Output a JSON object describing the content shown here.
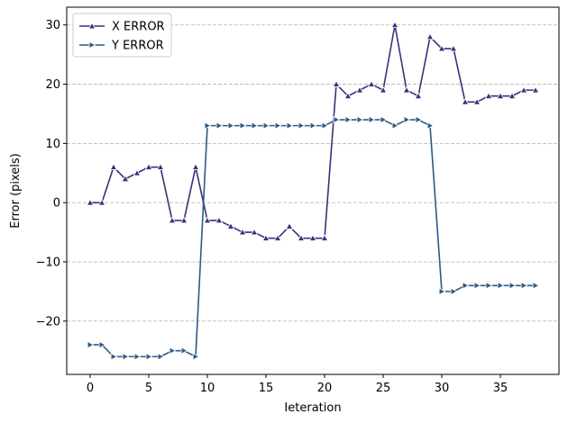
{
  "chart_data": {
    "type": "line",
    "title": "",
    "xlabel": "Ieteration",
    "ylabel": "Error (pixels)",
    "xlim": [
      -2,
      40
    ],
    "ylim": [
      -29,
      33
    ],
    "xticks": [
      0,
      5,
      10,
      15,
      20,
      25,
      30,
      35
    ],
    "yticks": [
      -20,
      -10,
      0,
      10,
      20,
      30
    ],
    "ytick_labels": [
      "−20",
      "−10",
      "0",
      "10",
      "20",
      "30"
    ],
    "grid": "horizontal dashed",
    "legend_position": "top-left",
    "x": [
      0,
      1,
      2,
      3,
      4,
      5,
      6,
      7,
      8,
      9,
      10,
      11,
      12,
      13,
      14,
      15,
      16,
      17,
      18,
      19,
      20,
      21,
      22,
      23,
      24,
      25,
      26,
      27,
      28,
      29,
      30,
      31,
      32,
      33,
      34,
      35,
      36,
      37,
      38
    ],
    "series": [
      {
        "name": "X ERROR",
        "color": "#3d2f7a",
        "marker": "triangle-up",
        "values": [
          0,
          0,
          6,
          4,
          5,
          6,
          6,
          -3,
          -3,
          6,
          -3,
          -3,
          -4,
          -5,
          -5,
          -6,
          -6,
          -4,
          -6,
          -6,
          -6,
          20,
          18,
          19,
          20,
          19,
          30,
          19,
          18,
          28,
          26,
          26,
          17,
          17,
          18,
          18,
          18,
          19,
          19
        ]
      },
      {
        "name": "Y ERROR",
        "color": "#2c5a84",
        "marker": "triangle-right",
        "values": [
          -24,
          -24,
          -26,
          -26,
          -26,
          -26,
          -26,
          -25,
          -25,
          -26,
          13,
          13,
          13,
          13,
          13,
          13,
          13,
          13,
          13,
          13,
          13,
          14,
          14,
          14,
          14,
          14,
          13,
          14,
          14,
          13,
          -15,
          -15,
          -14,
          -14,
          -14,
          -14,
          -14,
          -14,
          -14
        ]
      }
    ]
  }
}
